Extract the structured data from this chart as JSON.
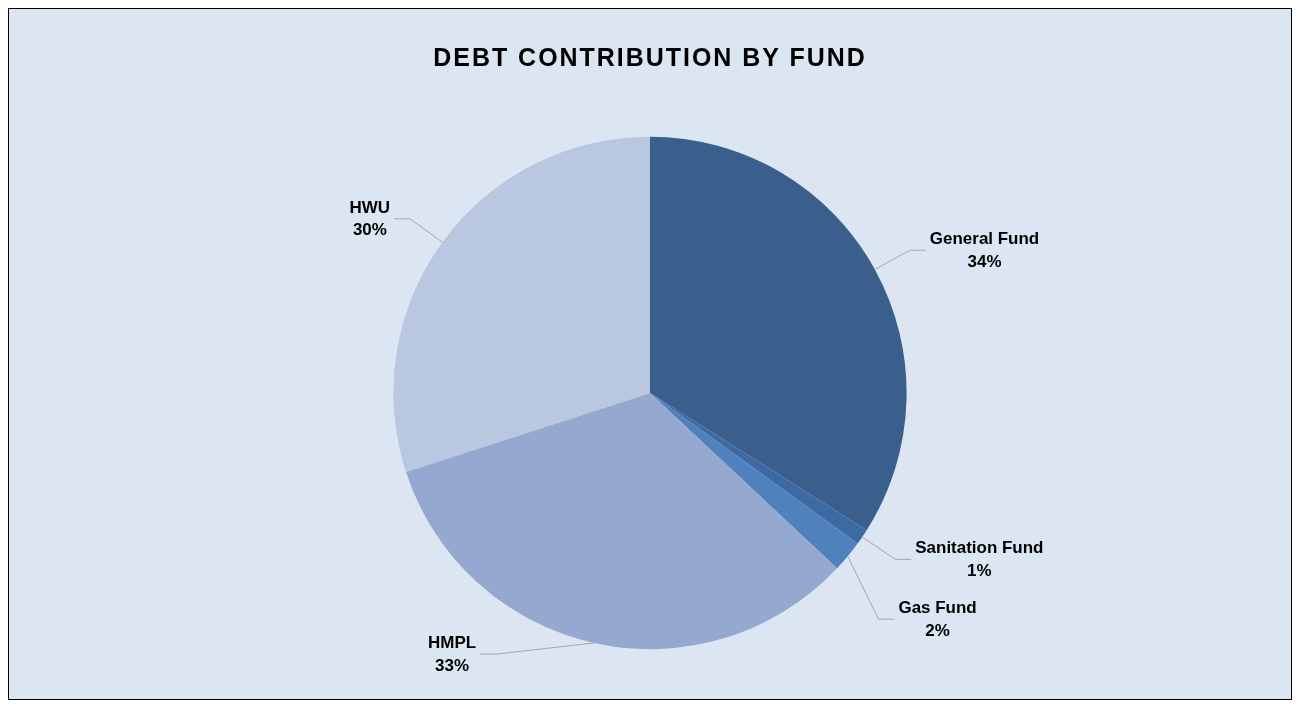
{
  "chart_data": {
    "type": "pie",
    "title": "DEBT CONTRIBUTION BY FUND",
    "categories": [
      "General Fund",
      "Sanitation Fund",
      "Gas Fund",
      "HMPL",
      "HWU"
    ],
    "values": [
      34,
      1,
      2,
      33,
      30
    ],
    "colors": [
      "#3a5f8c",
      "#3e6aa3",
      "#4f81bd",
      "#95a9d0",
      "#b9c7e1"
    ],
    "value_labels": [
      "34%",
      "1%",
      "2%",
      "33%",
      "30%"
    ],
    "legend": false
  }
}
